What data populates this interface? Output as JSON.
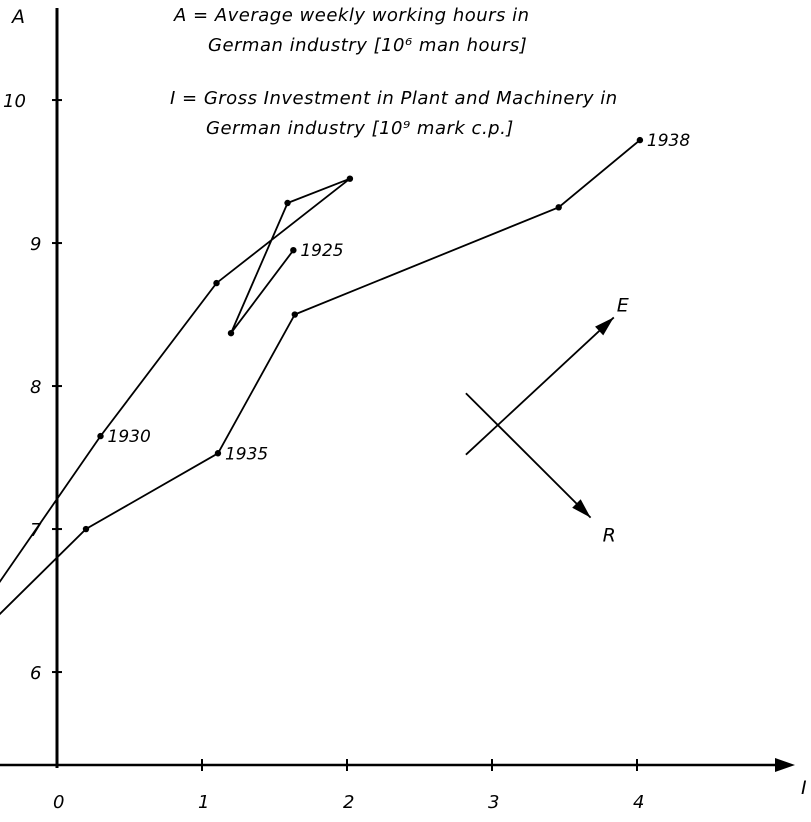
{
  "chart_data": {
    "type": "line",
    "x_axis_label": "I",
    "y_axis_label": "A",
    "xlim": [
      -0.4,
      5.1
    ],
    "ylim": [
      5.3,
      10.9
    ],
    "x_ticks": [
      "0",
      "1",
      "2",
      "3",
      "4"
    ],
    "y_ticks": [
      "6",
      "7",
      "8",
      "9",
      "10"
    ],
    "legend": [
      "A = Average weekly working hours  in",
      "German industry [10⁶ man hours]",
      "I = Gross Investment in Plant and Machinery in",
      "German industry [10⁹ mark c.p.]"
    ],
    "series": [
      {
        "points": [
          {
            "x": -0.45,
            "y": 6.55
          },
          {
            "x": 0.3,
            "y": 7.65
          },
          {
            "x": 1.1,
            "y": 8.72
          },
          {
            "x": 2.02,
            "y": 9.45
          },
          {
            "x": 1.59,
            "y": 9.28
          },
          {
            "x": 1.2,
            "y": 8.37
          },
          {
            "x": 1.63,
            "y": 8.95
          }
        ]
      },
      {
        "points": [
          {
            "x": -0.45,
            "y": 6.35
          },
          {
            "x": 0.2,
            "y": 7.0
          },
          {
            "x": 1.11,
            "y": 7.53
          },
          {
            "x": 1.64,
            "y": 8.5
          },
          {
            "x": 3.46,
            "y": 9.25
          },
          {
            "x": 4.02,
            "y": 9.72
          }
        ]
      }
    ],
    "point_labels": [
      {
        "text": "1930",
        "x": 0.3,
        "y": 7.65
      },
      {
        "text": "1925",
        "x": 1.63,
        "y": 8.95
      },
      {
        "text": "1935",
        "x": 1.11,
        "y": 7.53
      },
      {
        "text": "1938",
        "x": 4.02,
        "y": 9.72
      }
    ],
    "arrows": [
      {
        "label": "E",
        "from": {
          "x": 2.82,
          "y": 7.52
        },
        "to": {
          "x": 3.84,
          "y": 8.48
        }
      },
      {
        "label": "R",
        "from": {
          "x": 2.82,
          "y": 7.95
        },
        "to": {
          "x": 3.68,
          "y": 7.08
        }
      }
    ]
  }
}
